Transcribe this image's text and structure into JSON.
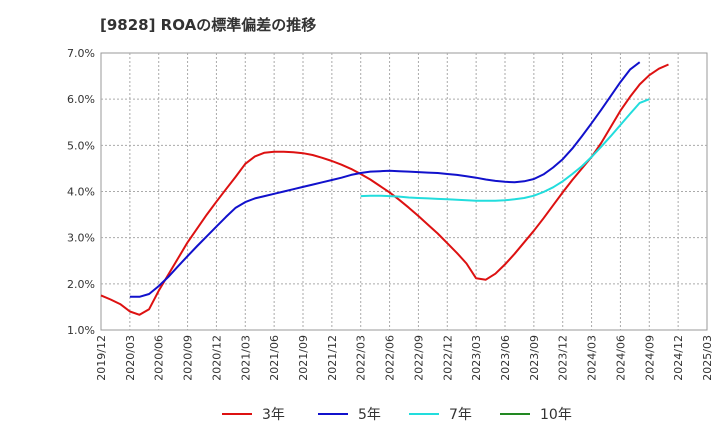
{
  "chart_data": {
    "type": "line",
    "title": "[9828]  ROAの標準偏差の推移",
    "xlabel": "",
    "ylabel": "",
    "x_ticks": [
      "2019/12",
      "2020/03",
      "2020/06",
      "2020/09",
      "2020/12",
      "2021/03",
      "2021/06",
      "2021/09",
      "2021/12",
      "2022/03",
      "2022/06",
      "2022/09",
      "2022/12",
      "2023/03",
      "2023/06",
      "2023/09",
      "2023/12",
      "2024/03",
      "2024/06",
      "2024/09",
      "2024/12",
      "2025/03"
    ],
    "y_ticks": [
      "1.0%",
      "2.0%",
      "3.0%",
      "4.0%",
      "5.0%",
      "6.0%",
      "7.0%"
    ],
    "ylim": [
      1.0,
      7.0
    ],
    "grid": true,
    "legend_position": "bottom",
    "series": [
      {
        "name": "3年",
        "color": "#dd1111",
        "points": [
          [
            "2019/12",
            1.75
          ],
          [
            "2020/01",
            1.66
          ],
          [
            "2020/02",
            1.56
          ],
          [
            "2020/03",
            1.4
          ],
          [
            "2020/04",
            1.33
          ],
          [
            "2020/05",
            1.45
          ],
          [
            "2020/06",
            1.85
          ],
          [
            "2020/07",
            2.2
          ],
          [
            "2020/08",
            2.55
          ],
          [
            "2020/09",
            2.9
          ],
          [
            "2020/10",
            3.2
          ],
          [
            "2020/11",
            3.5
          ],
          [
            "2020/12",
            3.78
          ],
          [
            "2021/01",
            4.05
          ],
          [
            "2021/02",
            4.32
          ],
          [
            "2021/03",
            4.6
          ],
          [
            "2021/04",
            4.76
          ],
          [
            "2021/05",
            4.84
          ],
          [
            "2021/06",
            4.86
          ],
          [
            "2021/07",
            4.86
          ],
          [
            "2021/08",
            4.85
          ],
          [
            "2021/09",
            4.83
          ],
          [
            "2021/10",
            4.79
          ],
          [
            "2021/11",
            4.73
          ],
          [
            "2021/12",
            4.66
          ],
          [
            "2022/01",
            4.58
          ],
          [
            "2022/02",
            4.49
          ],
          [
            "2022/03",
            4.38
          ],
          [
            "2022/04",
            4.26
          ],
          [
            "2022/05",
            4.12
          ],
          [
            "2022/06",
            3.98
          ],
          [
            "2022/07",
            3.82
          ],
          [
            "2022/08",
            3.65
          ],
          [
            "2022/09",
            3.47
          ],
          [
            "2022/10",
            3.28
          ],
          [
            "2022/11",
            3.09
          ],
          [
            "2022/12",
            2.88
          ],
          [
            "2023/01",
            2.67
          ],
          [
            "2023/02",
            2.44
          ],
          [
            "2023/03",
            2.12
          ],
          [
            "2023/04",
            2.09
          ],
          [
            "2023/05",
            2.22
          ],
          [
            "2023/06",
            2.42
          ],
          [
            "2023/07",
            2.65
          ],
          [
            "2023/08",
            2.9
          ],
          [
            "2023/09",
            3.15
          ],
          [
            "2023/10",
            3.42
          ],
          [
            "2023/11",
            3.7
          ],
          [
            "2023/12",
            3.98
          ],
          [
            "2024/01",
            4.25
          ],
          [
            "2024/02",
            4.5
          ],
          [
            "2024/03",
            4.75
          ],
          [
            "2024/04",
            5.05
          ],
          [
            "2024/05",
            5.4
          ],
          [
            "2024/06",
            5.75
          ],
          [
            "2024/07",
            6.05
          ],
          [
            "2024/08",
            6.32
          ],
          [
            "2024/09",
            6.52
          ],
          [
            "2024/10",
            6.66
          ],
          [
            "2024/11",
            6.75
          ]
        ]
      },
      {
        "name": "5年",
        "color": "#1111cc",
        "points": [
          [
            "2020/03",
            1.72
          ],
          [
            "2020/04",
            1.72
          ],
          [
            "2020/05",
            1.78
          ],
          [
            "2020/06",
            1.95
          ],
          [
            "2020/07",
            2.15
          ],
          [
            "2020/08",
            2.38
          ],
          [
            "2020/09",
            2.6
          ],
          [
            "2020/10",
            2.82
          ],
          [
            "2020/11",
            3.03
          ],
          [
            "2020/12",
            3.24
          ],
          [
            "2021/01",
            3.45
          ],
          [
            "2021/02",
            3.65
          ],
          [
            "2021/03",
            3.77
          ],
          [
            "2021/04",
            3.85
          ],
          [
            "2021/05",
            3.9
          ],
          [
            "2021/06",
            3.95
          ],
          [
            "2021/07",
            4.0
          ],
          [
            "2021/08",
            4.05
          ],
          [
            "2021/09",
            4.1
          ],
          [
            "2021/10",
            4.15
          ],
          [
            "2021/11",
            4.2
          ],
          [
            "2021/12",
            4.25
          ],
          [
            "2022/01",
            4.3
          ],
          [
            "2022/02",
            4.36
          ],
          [
            "2022/03",
            4.4
          ],
          [
            "2022/04",
            4.43
          ],
          [
            "2022/05",
            4.44
          ],
          [
            "2022/06",
            4.45
          ],
          [
            "2022/07",
            4.44
          ],
          [
            "2022/08",
            4.43
          ],
          [
            "2022/09",
            4.42
          ],
          [
            "2022/10",
            4.41
          ],
          [
            "2022/11",
            4.4
          ],
          [
            "2022/12",
            4.38
          ],
          [
            "2023/01",
            4.36
          ],
          [
            "2023/02",
            4.33
          ],
          [
            "2023/03",
            4.3
          ],
          [
            "2023/04",
            4.26
          ],
          [
            "2023/05",
            4.23
          ],
          [
            "2023/06",
            4.21
          ],
          [
            "2023/07",
            4.2
          ],
          [
            "2023/08",
            4.22
          ],
          [
            "2023/09",
            4.27
          ],
          [
            "2023/10",
            4.37
          ],
          [
            "2023/11",
            4.52
          ],
          [
            "2023/12",
            4.7
          ],
          [
            "2024/01",
            4.93
          ],
          [
            "2024/02",
            5.2
          ],
          [
            "2024/03",
            5.48
          ],
          [
            "2024/04",
            5.77
          ],
          [
            "2024/05",
            6.07
          ],
          [
            "2024/06",
            6.37
          ],
          [
            "2024/07",
            6.64
          ],
          [
            "2024/08",
            6.8
          ]
        ]
      },
      {
        "name": "7年",
        "color": "#22dddd",
        "points": [
          [
            "2022/03",
            3.9
          ],
          [
            "2022/04",
            3.91
          ],
          [
            "2022/05",
            3.91
          ],
          [
            "2022/06",
            3.9
          ],
          [
            "2022/07",
            3.89
          ],
          [
            "2022/08",
            3.87
          ],
          [
            "2022/09",
            3.86
          ],
          [
            "2022/10",
            3.85
          ],
          [
            "2022/11",
            3.84
          ],
          [
            "2022/12",
            3.83
          ],
          [
            "2023/01",
            3.82
          ],
          [
            "2023/02",
            3.81
          ],
          [
            "2023/03",
            3.8
          ],
          [
            "2023/04",
            3.8
          ],
          [
            "2023/05",
            3.8
          ],
          [
            "2023/06",
            3.81
          ],
          [
            "2023/07",
            3.83
          ],
          [
            "2023/08",
            3.86
          ],
          [
            "2023/09",
            3.91
          ],
          [
            "2023/10",
            3.99
          ],
          [
            "2023/11",
            4.09
          ],
          [
            "2023/12",
            4.22
          ],
          [
            "2024/01",
            4.38
          ],
          [
            "2024/02",
            4.55
          ],
          [
            "2024/03",
            4.75
          ],
          [
            "2024/04",
            4.97
          ],
          [
            "2024/05",
            5.2
          ],
          [
            "2024/06",
            5.44
          ],
          [
            "2024/07",
            5.68
          ],
          [
            "2024/08",
            5.92
          ],
          [
            "2024/09",
            6.0
          ]
        ]
      },
      {
        "name": "10年",
        "color": "#228822",
        "points": []
      }
    ]
  }
}
